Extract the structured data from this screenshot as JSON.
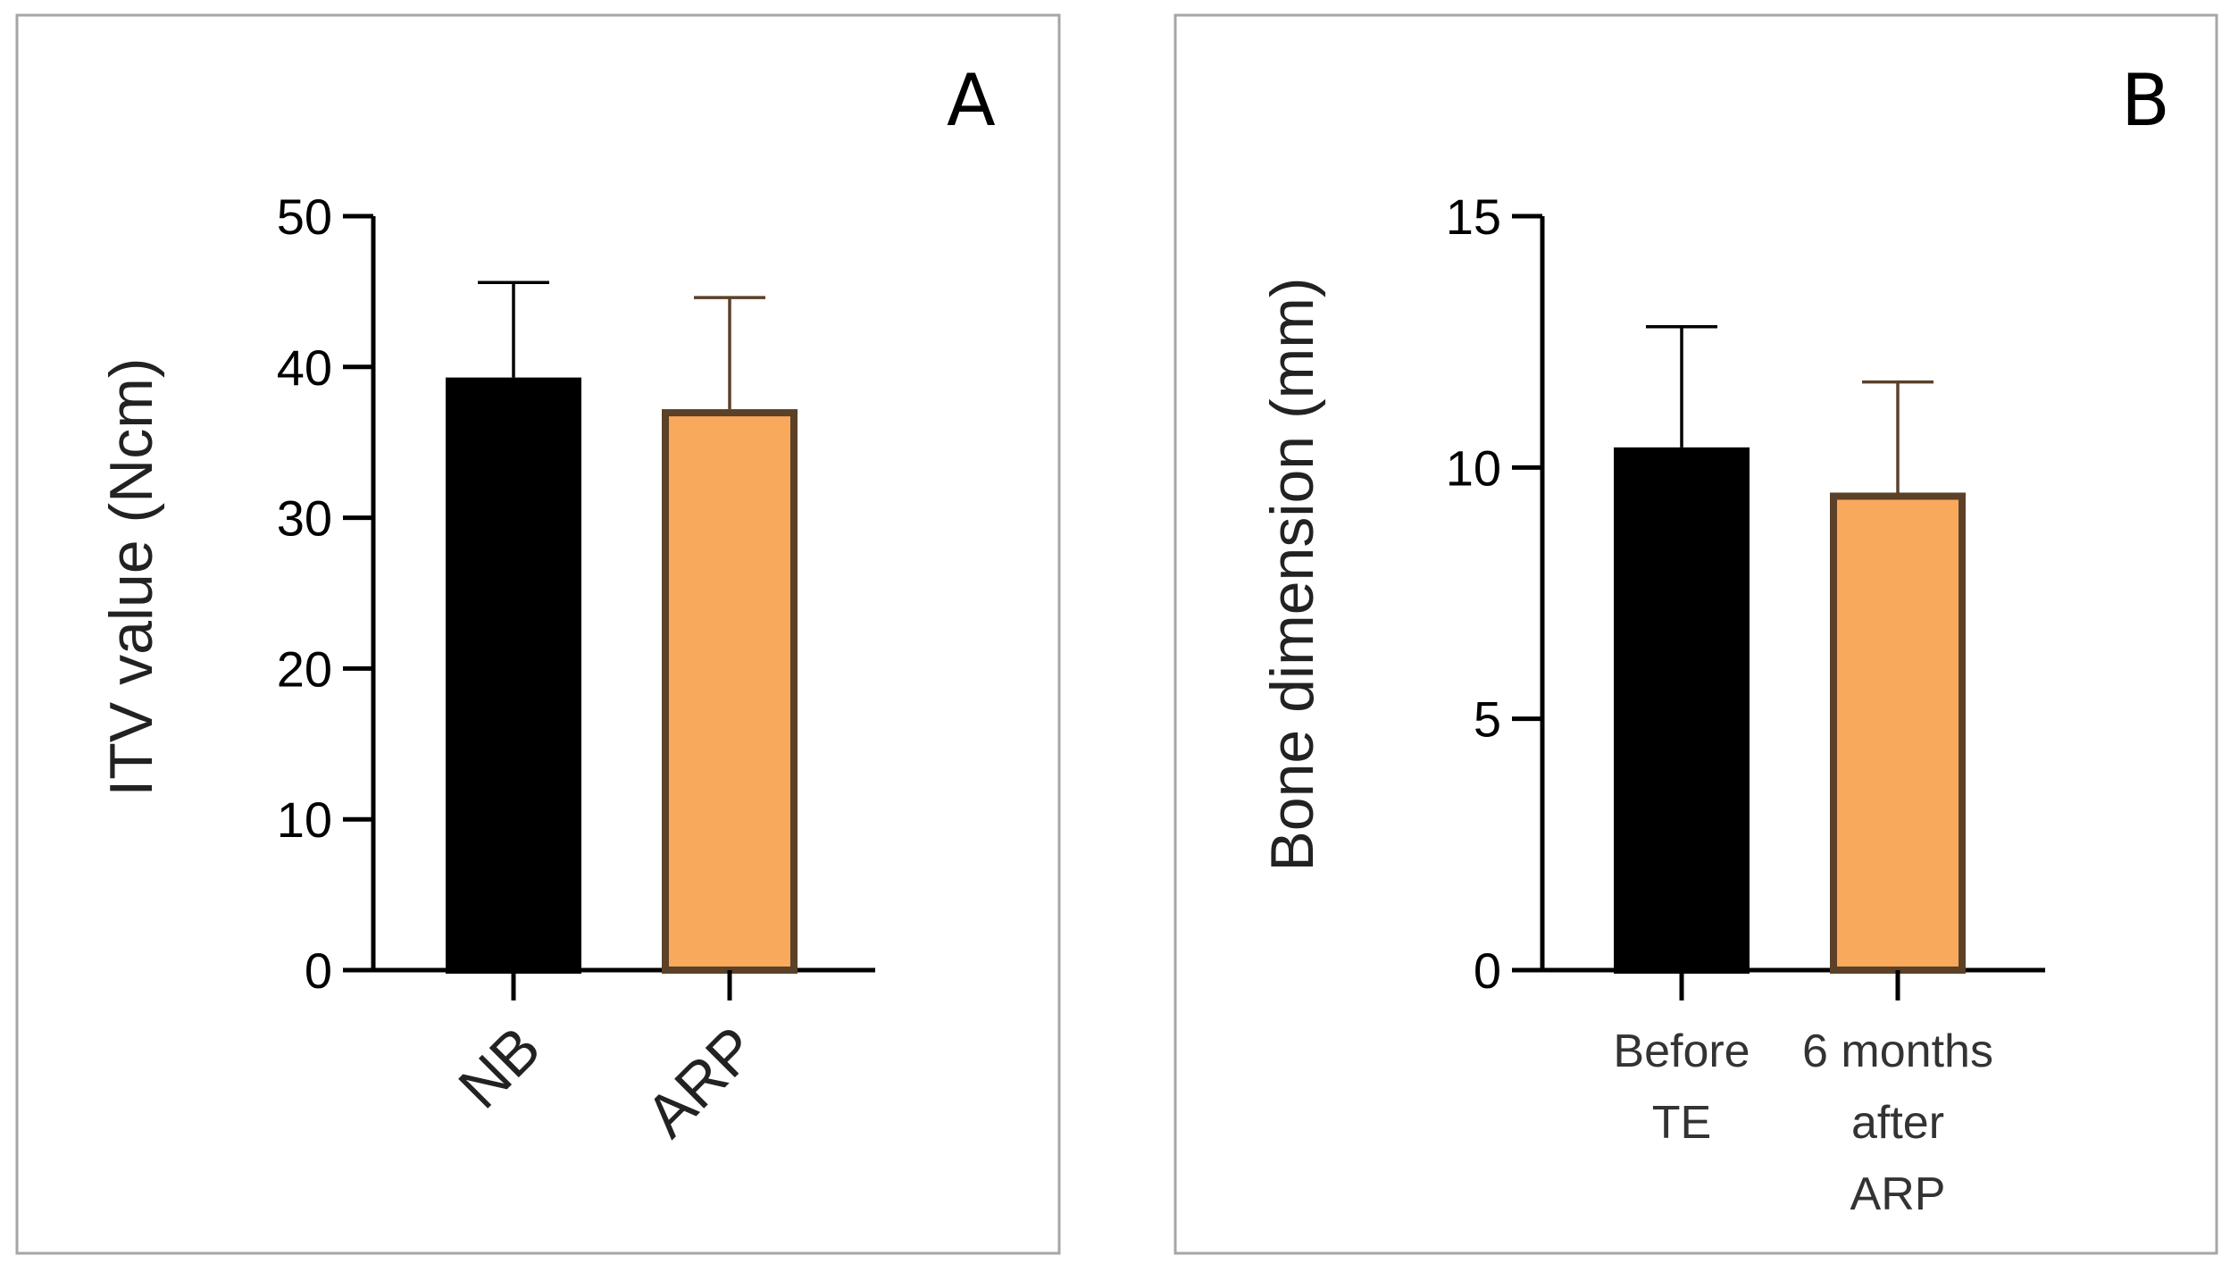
{
  "chart_data": [
    {
      "type": "bar",
      "panel_label": "A",
      "categories": [
        "NB",
        "ARP"
      ],
      "values": [
        39.3,
        37.2
      ],
      "errors": [
        6.3,
        7.4
      ],
      "ylabel": "ITV value (Ncm)",
      "ylim": [
        0,
        50
      ],
      "yticks": [
        0,
        10,
        20,
        30,
        40,
        50
      ],
      "colors": [
        "#000000",
        "#f9a95b"
      ],
      "outline_colors": [
        "#000000",
        "#5a4128"
      ],
      "grid": false
    },
    {
      "type": "bar",
      "panel_label": "B",
      "categories": [
        [
          "Before",
          "TE"
        ],
        [
          "6 months",
          "after",
          "ARP"
        ]
      ],
      "values": [
        10.4,
        9.5
      ],
      "errors": [
        2.4,
        2.2
      ],
      "ylabel": "Bone dimension (mm)",
      "ylim": [
        0,
        15
      ],
      "yticks": [
        0,
        5,
        10,
        15
      ],
      "colors": [
        "#000000",
        "#f9a95b"
      ],
      "outline_colors": [
        "#000000",
        "#5a4128"
      ],
      "grid": false
    }
  ]
}
